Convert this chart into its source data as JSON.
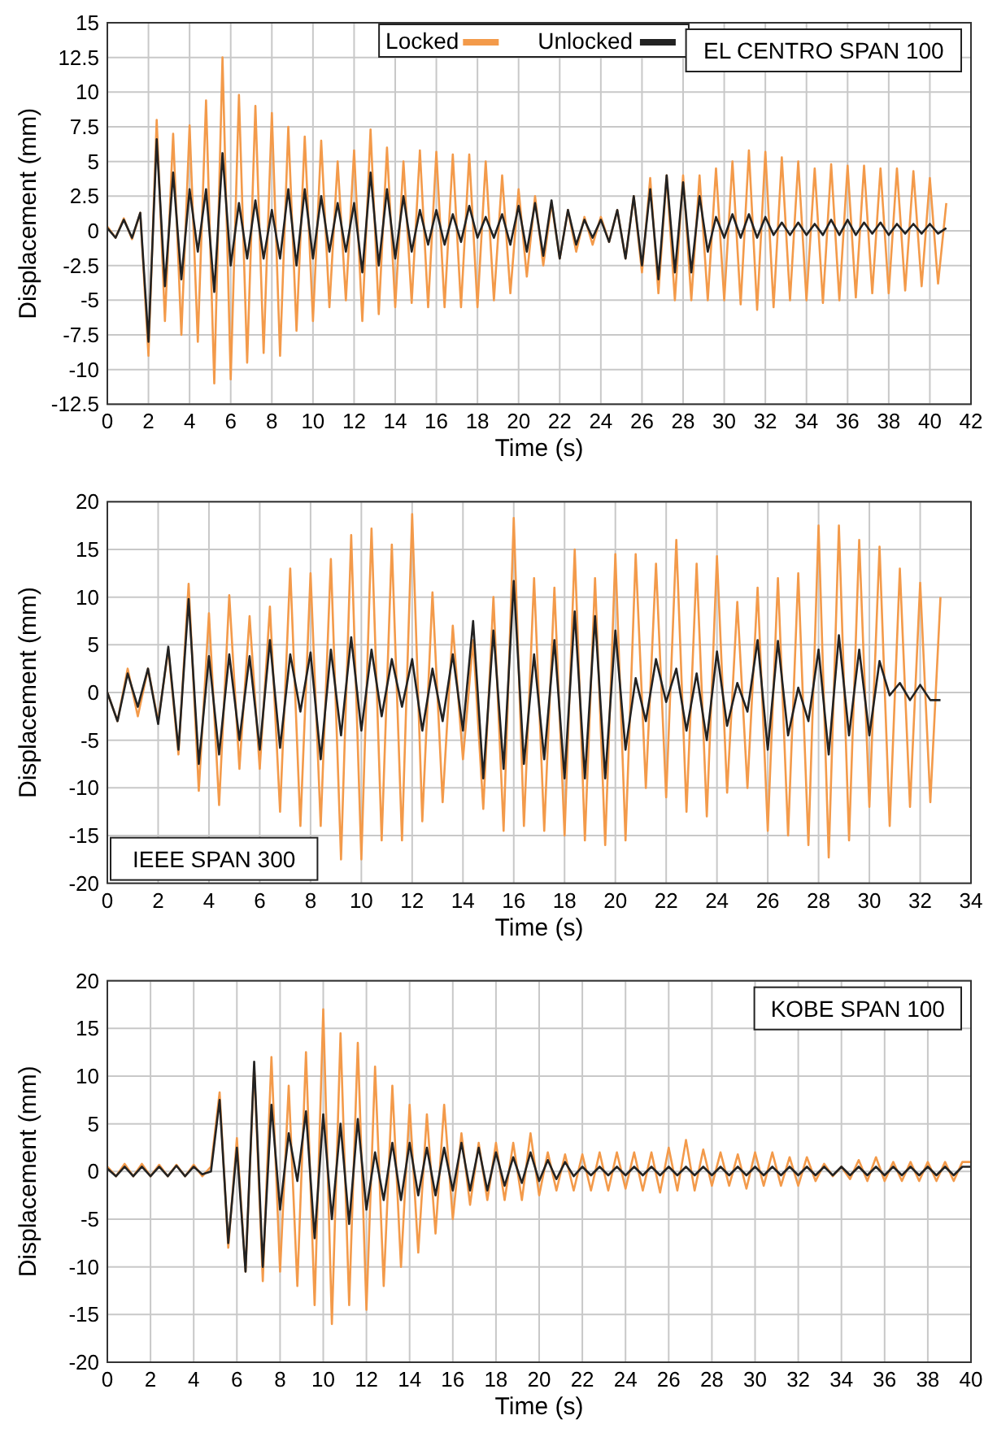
{
  "chart_data": [
    {
      "type": "line",
      "xlabel": "Time (s)",
      "ylabel": "Displacement (mm)",
      "annotations": [
        "EL CENTRO SPAN 100"
      ],
      "xlim": [
        0,
        42
      ],
      "ylim": [
        -12.5,
        15
      ],
      "xticks": [
        0,
        2,
        4,
        6,
        8,
        10,
        12,
        14,
        16,
        18,
        20,
        22,
        24,
        26,
        28,
        30,
        32,
        34,
        36,
        38,
        40,
        42
      ],
      "yticks": [
        -12.5,
        -10,
        -7.5,
        -5,
        -2.5,
        0,
        2.5,
        5,
        7.5,
        10,
        12.5,
        15
      ],
      "grid": true,
      "legend": "top",
      "marker": "none",
      "line_style": "solid",
      "x": [
        0,
        0.4,
        0.8,
        1.2,
        1.6,
        2,
        2.4,
        2.8,
        3.2,
        3.6,
        4,
        4.4,
        4.8,
        5.2,
        5.6,
        6,
        6.4,
        6.8,
        7.2,
        7.6,
        8,
        8.4,
        8.8,
        9.2,
        9.6,
        10,
        10.4,
        10.8,
        11.2,
        11.6,
        12,
        12.4,
        12.8,
        13.2,
        13.6,
        14,
        14.4,
        14.8,
        15.2,
        15.6,
        16,
        16.4,
        16.8,
        17.2,
        17.6,
        18,
        18.4,
        18.8,
        19.2,
        19.6,
        20,
        20.4,
        20.8,
        21.2,
        21.6,
        22,
        22.4,
        22.8,
        23.2,
        23.6,
        24,
        24.4,
        24.8,
        25.2,
        25.6,
        26,
        26.4,
        26.8,
        27.2,
        27.6,
        28,
        28.4,
        28.8,
        29.2,
        29.6,
        30,
        30.4,
        30.8,
        31.2,
        31.6,
        32,
        32.4,
        32.8,
        33.2,
        33.6,
        34,
        34.4,
        34.8,
        35.2,
        35.6,
        36,
        36.4,
        36.8,
        37.2,
        37.6,
        38,
        38.4,
        38.8,
        39.2,
        39.6,
        40,
        40.4,
        40.8
      ],
      "series": [
        {
          "name": "Locked",
          "color": "#f39a4a",
          "values": [
            0.3,
            -0.5,
            0.9,
            -0.6,
            1.3,
            -9,
            8,
            -6.5,
            7,
            -7.5,
            7.6,
            -8,
            9.4,
            -11,
            12.5,
            -10.7,
            9.8,
            -9.5,
            9,
            -8.8,
            8.5,
            -9,
            7.5,
            -7.2,
            6.8,
            -6.5,
            6.5,
            -5.5,
            5,
            -5,
            5.8,
            -6.5,
            7.3,
            -6,
            6,
            -5.5,
            5,
            -5.2,
            5.8,
            -5.5,
            5.7,
            -5.5,
            5.5,
            -5.5,
            5.5,
            -5.5,
            5,
            -5,
            4,
            -4.5,
            3,
            -3.3,
            2.5,
            -2.5,
            2,
            -2,
            1.5,
            -1.5,
            1,
            -1,
            1,
            -0.8,
            1.5,
            -2,
            2.5,
            -3,
            3.8,
            -4.5,
            4,
            -5,
            4,
            -5,
            4,
            -5,
            4.5,
            -5,
            5,
            -5.3,
            5.8,
            -5.7,
            5.7,
            -5.5,
            5.3,
            -5,
            5,
            -5,
            4.5,
            -5.2,
            4.8,
            -5,
            4.7,
            -4.8,
            4.7,
            -4.5,
            4.5,
            -4.5,
            4.5,
            -4.3,
            4.3,
            -4,
            3.8,
            -3.8,
            2
          ]
        },
        {
          "name": "Unlocked",
          "color": "#222222",
          "values": [
            0.2,
            -0.5,
            0.8,
            -0.5,
            1.3,
            -8,
            6.6,
            -4,
            4.2,
            -3.5,
            3,
            -1.5,
            3,
            -4.4,
            5.6,
            -2.5,
            2,
            -2,
            2.2,
            -2,
            1.5,
            -2,
            3,
            -2.5,
            3,
            -2,
            2.5,
            -1.5,
            2,
            -1.5,
            2,
            -3,
            4.2,
            -2.5,
            3,
            -2,
            2.5,
            -1.5,
            1.5,
            -1,
            1.5,
            -1,
            1.2,
            -0.8,
            1.8,
            -0.5,
            1,
            -0.5,
            1.2,
            -1,
            1.8,
            -1.5,
            2,
            -1.8,
            2.2,
            -2,
            1.5,
            -1,
            0.8,
            -0.5,
            0.8,
            -0.8,
            1.5,
            -2,
            2.5,
            -2.5,
            3,
            -3.5,
            4,
            -3,
            3.5,
            -3,
            2.5,
            -1.5,
            1,
            -0.5,
            1.2,
            -0.5,
            1.2,
            -0.5,
            1,
            -0.3,
            0.6,
            -0.3,
            0.6,
            -0.3,
            0.5,
            -0.3,
            0.8,
            -0.3,
            0.8,
            -0.3,
            0.6,
            -0.2,
            0.6,
            -0.3,
            0.5,
            -0.2,
            0.5,
            -0.2,
            0.5,
            -0.2,
            0.2
          ]
        }
      ]
    },
    {
      "type": "line",
      "xlabel": "Time (s)",
      "ylabel": "Displacement (mm)",
      "annotations": [
        "IEEE SPAN 300"
      ],
      "xlim": [
        0,
        34
      ],
      "ylim": [
        -20,
        20
      ],
      "xticks": [
        0,
        2,
        4,
        6,
        8,
        10,
        12,
        14,
        16,
        18,
        20,
        22,
        24,
        26,
        28,
        30,
        32,
        34
      ],
      "yticks": [
        -20,
        -15,
        -10,
        -5,
        0,
        5,
        10,
        15,
        20
      ],
      "grid": true,
      "marker": "none",
      "line_style": "solid",
      "x": [
        0,
        0.4,
        0.8,
        1.2,
        1.6,
        2,
        2.4,
        2.8,
        3.2,
        3.6,
        4,
        4.4,
        4.8,
        5.2,
        5.6,
        6,
        6.4,
        6.8,
        7.2,
        7.6,
        8,
        8.4,
        8.8,
        9.2,
        9.6,
        10,
        10.4,
        10.8,
        11.2,
        11.6,
        12,
        12.4,
        12.8,
        13.2,
        13.6,
        14,
        14.4,
        14.8,
        15.2,
        15.6,
        16,
        16.4,
        16.8,
        17.2,
        17.6,
        18,
        18.4,
        18.8,
        19.2,
        19.6,
        20,
        20.4,
        20.8,
        21.2,
        21.6,
        22,
        22.4,
        22.8,
        23.2,
        23.6,
        24,
        24.4,
        24.8,
        25.2,
        25.6,
        26,
        26.4,
        26.8,
        27.2,
        27.6,
        28,
        28.4,
        28.8,
        29.2,
        29.6,
        30,
        30.4,
        30.8,
        31.2,
        31.6,
        32,
        32.4,
        32.8
      ],
      "series": [
        {
          "color": "#f39a4a",
          "values": [
            0,
            -3,
            2.5,
            -2.5,
            2.5,
            -3,
            4.5,
            -6.5,
            11.4,
            -10.3,
            8.3,
            -11.8,
            10.2,
            -8,
            8,
            -8,
            9,
            -12.5,
            13,
            -14,
            12.5,
            -14,
            14,
            -17.5,
            16.5,
            -17.5,
            17.2,
            -15.5,
            15.5,
            -15.5,
            18.7,
            -13.5,
            10.5,
            -11.5,
            7,
            -7,
            5.5,
            -12.2,
            10,
            -14.5,
            18.3,
            -14,
            12,
            -14.5,
            11,
            -15,
            15,
            -15.5,
            12,
            -16,
            14.5,
            -15.5,
            14.5,
            -10,
            13.5,
            -11,
            16,
            -12.5,
            13.5,
            -13,
            14.3,
            -10.5,
            9.5,
            -10,
            11,
            -14.5,
            12,
            -15,
            12.5,
            -16,
            17.5,
            -17.3,
            17.5,
            -15.5,
            16,
            -12,
            15.3,
            -14,
            13,
            -12,
            11.5,
            -11.5,
            10
          ]
        },
        {
          "color": "#222222",
          "values": [
            0,
            -3,
            2,
            -1.5,
            2.5,
            -3.3,
            4.8,
            -6,
            9.8,
            -7.5,
            3.8,
            -6.5,
            4,
            -5,
            3.8,
            -6,
            5.5,
            -5.8,
            4,
            -2,
            4.2,
            -7,
            4.5,
            -4.5,
            5.8,
            -4,
            4.5,
            -2.5,
            3.5,
            -1.5,
            3.5,
            -4,
            2.5,
            -3,
            4,
            -4,
            7.5,
            -9,
            6.5,
            -8,
            11.7,
            -7.5,
            4,
            -7,
            5.5,
            -9,
            8.5,
            -9,
            8,
            -9,
            6.5,
            -6,
            1.5,
            -3,
            3.5,
            -1,
            2.5,
            -4,
            2,
            -5,
            4.3,
            -3.5,
            1,
            -2,
            5.5,
            -6,
            5.4,
            -4.5,
            0.5,
            -3,
            4.5,
            -6.5,
            6,
            -4.5,
            4.5,
            -4.5,
            3.3,
            -0.3,
            1,
            -0.8,
            0.8,
            -0.8,
            -0.8
          ]
        }
      ]
    },
    {
      "type": "line",
      "xlabel": "Time (s)",
      "ylabel": "Displacement (mm)",
      "annotations": [
        "KOBE SPAN 100"
      ],
      "xlim": [
        0,
        40
      ],
      "ylim": [
        -20,
        20
      ],
      "xticks": [
        0,
        2,
        4,
        6,
        8,
        10,
        12,
        14,
        16,
        18,
        20,
        22,
        24,
        26,
        28,
        30,
        32,
        34,
        36,
        38,
        40
      ],
      "yticks": [
        -20,
        -15,
        -10,
        -5,
        0,
        5,
        10,
        15,
        20
      ],
      "grid": true,
      "marker": "none",
      "line_style": "solid",
      "x": [
        0,
        0.4,
        0.8,
        1.2,
        1.6,
        2,
        2.4,
        2.8,
        3.2,
        3.6,
        4,
        4.4,
        4.8,
        5.2,
        5.6,
        6,
        6.4,
        6.8,
        7.2,
        7.6,
        8,
        8.4,
        8.8,
        9.2,
        9.6,
        10,
        10.4,
        10.8,
        11.2,
        11.6,
        12,
        12.4,
        12.8,
        13.2,
        13.6,
        14,
        14.4,
        14.8,
        15.2,
        15.6,
        16,
        16.4,
        16.8,
        17.2,
        17.6,
        18,
        18.4,
        18.8,
        19.2,
        19.6,
        20,
        20.4,
        20.8,
        21.2,
        21.6,
        22,
        22.4,
        22.8,
        23.2,
        23.6,
        24,
        24.4,
        24.8,
        25.2,
        25.6,
        26,
        26.4,
        26.8,
        27.2,
        27.6,
        28,
        28.4,
        28.8,
        29.2,
        29.6,
        30,
        30.4,
        30.8,
        31.2,
        31.6,
        32,
        32.4,
        32.8,
        33.2,
        33.6,
        34,
        34.4,
        34.8,
        35.2,
        35.6,
        36,
        36.4,
        36.8,
        37.2,
        37.6,
        38,
        38.4,
        38.8,
        39.2,
        39.6,
        40
      ],
      "series": [
        {
          "color": "#f39a4a",
          "values": [
            0.5,
            -0.5,
            0.8,
            -0.5,
            0.8,
            -0.5,
            0.7,
            -0.5,
            0.7,
            -0.5,
            0.7,
            -0.5,
            0.5,
            8.3,
            -8,
            3.5,
            -10.5,
            11,
            -11.5,
            12,
            -10.5,
            9,
            -12,
            12.5,
            -14,
            17,
            -16,
            14.5,
            -14,
            13.5,
            -14.5,
            11,
            -12,
            9,
            -10,
            7,
            -8.5,
            6,
            -6.5,
            7,
            -5,
            4,
            -3.5,
            3,
            -3,
            3,
            -3,
            3,
            -3,
            4,
            -2.5,
            2,
            -2,
            1.8,
            -2,
            1.8,
            -2,
            2,
            -2,
            2,
            -1.8,
            2,
            -2,
            2,
            -2.2,
            2.5,
            -2,
            3.3,
            -2,
            2.3,
            -1.5,
            2,
            -1.5,
            1.8,
            -1.8,
            2,
            -1.5,
            2,
            -1.5,
            1.5,
            -1.5,
            1.5,
            -1,
            0.8,
            -0.5,
            0.5,
            -0.8,
            1.2,
            -1,
            1.5,
            -1,
            1,
            -1,
            1,
            -1,
            1,
            -1,
            1,
            -1,
            1,
            1
          ]
        },
        {
          "color": "#222222",
          "values": [
            0.3,
            -0.5,
            0.5,
            -0.5,
            0.5,
            -0.5,
            0.5,
            -0.5,
            0.6,
            -0.5,
            0.5,
            -0.3,
            0,
            7.5,
            -7.5,
            2.5,
            -10.5,
            11.5,
            -10,
            7,
            -4,
            4,
            -1,
            6.3,
            -7,
            6,
            -5,
            5,
            -5.5,
            5.5,
            -4,
            2,
            -3,
            3,
            -3,
            3,
            -2.5,
            2.5,
            -2.5,
            2.5,
            -2,
            3,
            -2,
            2.5,
            -2,
            2,
            -1.5,
            1.5,
            -1.2,
            2,
            -1,
            1.2,
            -0.8,
            1,
            -0.5,
            0.5,
            -0.4,
            0.5,
            -0.4,
            0.5,
            -0.4,
            0.5,
            -0.4,
            0.5,
            -0.4,
            0.5,
            -0.4,
            0.5,
            -0.4,
            0.5,
            -0.4,
            0.5,
            -0.4,
            0.5,
            -0.4,
            0.5,
            -0.4,
            0.5,
            -0.4,
            0.5,
            -0.4,
            0.5,
            -0.4,
            0.5,
            -0.4,
            0.5,
            -0.4,
            0.5,
            -0.4,
            0.5,
            -0.4,
            0.5,
            -0.4,
            0.5,
            -0.4,
            0.5,
            -0.4,
            0.5,
            -0.4,
            0.5,
            0.5
          ]
        }
      ]
    }
  ]
}
